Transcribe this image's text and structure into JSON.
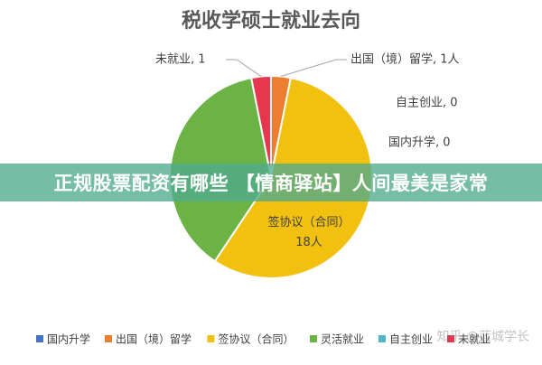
{
  "chart_data": {
    "type": "pie",
    "title": "税收学硕士就业去向",
    "slices": [
      {
        "name": "国内升学",
        "value": 0,
        "label": "国内升学, 0",
        "color": "#4472c4"
      },
      {
        "name": "出国（境）留学",
        "value": 1,
        "label": "出国（境）留学, 1人",
        "color": "#ed7d31"
      },
      {
        "name": "签协议（合同）",
        "value": 18,
        "label": "签协议（合同）, 18人",
        "color": "#f2c10f"
      },
      {
        "name": "灵活就业",
        "value": 12,
        "label": "",
        "color": "#6ab344"
      },
      {
        "name": "自主创业",
        "value": 0,
        "label": "自主创业, 0",
        "color": "#4bb9c6"
      },
      {
        "name": "未就业",
        "value": 1,
        "label": "未就业, 1",
        "color": "#e8364f"
      }
    ],
    "legend": [
      "国内升学",
      "出国（境）留学",
      "签协议（合同）",
      "灵活就业",
      "自主创业",
      "未就业"
    ],
    "legend_position": "bottom"
  },
  "overlay": {
    "banner_text": "正规股票配资有哪些 【情商驿站】人间最美是家常",
    "watermark": "知乎 @蓝城学长"
  }
}
